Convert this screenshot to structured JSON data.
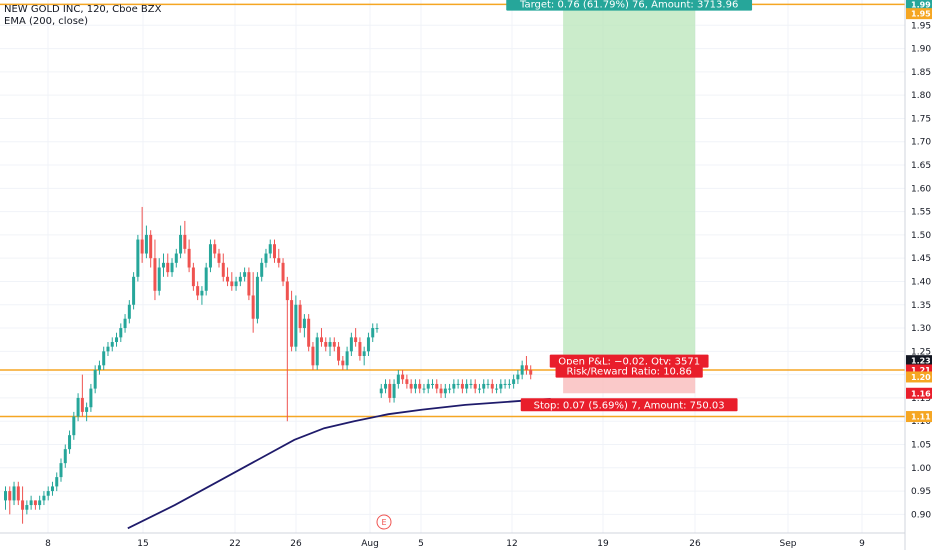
{
  "header": {
    "title": "NEW GOLD INC, 120, Cboe BZX",
    "indicator": "EMA (200, close)"
  },
  "colors": {
    "up": "#26a69a",
    "down": "#ef5350",
    "ema": "#1f1b6b",
    "hline": "#f5a623",
    "target_zone": "#b9e5b9",
    "stop_zone": "#f9c0c0",
    "label_green": "#26a69a",
    "label_red": "#e91e2b"
  },
  "chart_data": {
    "type": "candlestick",
    "symbol": "NEW GOLD INC",
    "interval": "120",
    "exchange": "Cboe BZX",
    "x_ticks": [
      "8",
      "15",
      "22",
      "26",
      "Aug",
      "5",
      "12",
      "19",
      "26",
      "Sep",
      "9"
    ],
    "y_ticks": [
      "1.95",
      "1.90",
      "1.85",
      "1.80",
      "1.75",
      "1.70",
      "1.65",
      "1.60",
      "1.55",
      "1.50",
      "1.45",
      "1.40",
      "1.35",
      "1.30",
      "1.25",
      "1.20",
      "1.15",
      "1.10",
      "1.05",
      "1.00",
      "0.95",
      "0.90"
    ],
    "ylim": [
      0.86,
      2.0
    ],
    "candles": [
      {
        "o": 0.93,
        "h": 0.96,
        "l": 0.91,
        "c": 0.95
      },
      {
        "o": 0.95,
        "h": 0.96,
        "l": 0.9,
        "c": 0.93
      },
      {
        "o": 0.93,
        "h": 0.97,
        "l": 0.92,
        "c": 0.96
      },
      {
        "o": 0.96,
        "h": 0.97,
        "l": 0.92,
        "c": 0.93
      },
      {
        "o": 0.93,
        "h": 0.96,
        "l": 0.88,
        "c": 0.91
      },
      {
        "o": 0.91,
        "h": 0.93,
        "l": 0.9,
        "c": 0.92
      },
      {
        "o": 0.92,
        "h": 0.94,
        "l": 0.91,
        "c": 0.93
      },
      {
        "o": 0.93,
        "h": 0.93,
        "l": 0.91,
        "c": 0.92
      },
      {
        "o": 0.92,
        "h": 0.94,
        "l": 0.91,
        "c": 0.93
      },
      {
        "o": 0.93,
        "h": 0.95,
        "l": 0.92,
        "c": 0.94
      },
      {
        "o": 0.94,
        "h": 0.96,
        "l": 0.93,
        "c": 0.95
      },
      {
        "o": 0.95,
        "h": 0.97,
        "l": 0.94,
        "c": 0.96
      },
      {
        "o": 0.96,
        "h": 0.99,
        "l": 0.95,
        "c": 0.98
      },
      {
        "o": 0.98,
        "h": 1.02,
        "l": 0.97,
        "c": 1.01
      },
      {
        "o": 1.01,
        "h": 1.05,
        "l": 1.0,
        "c": 1.04
      },
      {
        "o": 1.04,
        "h": 1.08,
        "l": 1.03,
        "c": 1.07
      },
      {
        "o": 1.07,
        "h": 1.12,
        "l": 1.06,
        "c": 1.11
      },
      {
        "o": 1.11,
        "h": 1.16,
        "l": 1.1,
        "c": 1.15
      },
      {
        "o": 1.15,
        "h": 1.2,
        "l": 1.11,
        "c": 1.12
      },
      {
        "o": 1.12,
        "h": 1.14,
        "l": 1.1,
        "c": 1.13
      },
      {
        "o": 1.13,
        "h": 1.18,
        "l": 1.12,
        "c": 1.17
      },
      {
        "o": 1.17,
        "h": 1.22,
        "l": 1.16,
        "c": 1.21
      },
      {
        "o": 1.21,
        "h": 1.23,
        "l": 1.2,
        "c": 1.22
      },
      {
        "o": 1.22,
        "h": 1.26,
        "l": 1.21,
        "c": 1.25
      },
      {
        "o": 1.25,
        "h": 1.27,
        "l": 1.24,
        "c": 1.26
      },
      {
        "o": 1.26,
        "h": 1.28,
        "l": 1.25,
        "c": 1.27
      },
      {
        "o": 1.27,
        "h": 1.29,
        "l": 1.26,
        "c": 1.28
      },
      {
        "o": 1.28,
        "h": 1.31,
        "l": 1.27,
        "c": 1.3
      },
      {
        "o": 1.3,
        "h": 1.33,
        "l": 1.29,
        "c": 1.32
      },
      {
        "o": 1.32,
        "h": 1.36,
        "l": 1.31,
        "c": 1.35
      },
      {
        "o": 1.35,
        "h": 1.42,
        "l": 1.34,
        "c": 1.41
      },
      {
        "o": 1.41,
        "h": 1.5,
        "l": 1.4,
        "c": 1.49
      },
      {
        "o": 1.49,
        "h": 1.56,
        "l": 1.44,
        "c": 1.46
      },
      {
        "o": 1.46,
        "h": 1.52,
        "l": 1.45,
        "c": 1.5
      },
      {
        "o": 1.5,
        "h": 1.51,
        "l": 1.43,
        "c": 1.45
      },
      {
        "o": 1.45,
        "h": 1.49,
        "l": 1.36,
        "c": 1.38
      },
      {
        "o": 1.38,
        "h": 1.45,
        "l": 1.37,
        "c": 1.43
      },
      {
        "o": 1.43,
        "h": 1.46,
        "l": 1.41,
        "c": 1.44
      },
      {
        "o": 1.44,
        "h": 1.46,
        "l": 1.41,
        "c": 1.42
      },
      {
        "o": 1.42,
        "h": 1.45,
        "l": 1.41,
        "c": 1.44
      },
      {
        "o": 1.44,
        "h": 1.47,
        "l": 1.43,
        "c": 1.46
      },
      {
        "o": 1.46,
        "h": 1.52,
        "l": 1.45,
        "c": 1.5
      },
      {
        "o": 1.5,
        "h": 1.53,
        "l": 1.46,
        "c": 1.47
      },
      {
        "o": 1.47,
        "h": 1.49,
        "l": 1.42,
        "c": 1.43
      },
      {
        "o": 1.43,
        "h": 1.44,
        "l": 1.38,
        "c": 1.39
      },
      {
        "o": 1.39,
        "h": 1.4,
        "l": 1.36,
        "c": 1.37
      },
      {
        "o": 1.37,
        "h": 1.39,
        "l": 1.35,
        "c": 1.38
      },
      {
        "o": 1.38,
        "h": 1.44,
        "l": 1.37,
        "c": 1.43
      },
      {
        "o": 1.43,
        "h": 1.49,
        "l": 1.42,
        "c": 1.48
      },
      {
        "o": 1.48,
        "h": 1.49,
        "l": 1.45,
        "c": 1.46
      },
      {
        "o": 1.46,
        "h": 1.47,
        "l": 1.43,
        "c": 1.44
      },
      {
        "o": 1.44,
        "h": 1.46,
        "l": 1.4,
        "c": 1.41
      },
      {
        "o": 1.41,
        "h": 1.43,
        "l": 1.39,
        "c": 1.4
      },
      {
        "o": 1.4,
        "h": 1.42,
        "l": 1.38,
        "c": 1.39
      },
      {
        "o": 1.39,
        "h": 1.41,
        "l": 1.38,
        "c": 1.4
      },
      {
        "o": 1.4,
        "h": 1.42,
        "l": 1.39,
        "c": 1.41
      },
      {
        "o": 1.41,
        "h": 1.43,
        "l": 1.4,
        "c": 1.42
      },
      {
        "o": 1.42,
        "h": 1.43,
        "l": 1.36,
        "c": 1.37
      },
      {
        "o": 1.37,
        "h": 1.42,
        "l": 1.29,
        "c": 1.32
      },
      {
        "o": 1.32,
        "h": 1.42,
        "l": 1.31,
        "c": 1.41
      },
      {
        "o": 1.41,
        "h": 1.45,
        "l": 1.4,
        "c": 1.44
      },
      {
        "o": 1.44,
        "h": 1.47,
        "l": 1.43,
        "c": 1.46
      },
      {
        "o": 1.46,
        "h": 1.49,
        "l": 1.45,
        "c": 1.48
      },
      {
        "o": 1.48,
        "h": 1.49,
        "l": 1.44,
        "c": 1.45
      },
      {
        "o": 1.45,
        "h": 1.47,
        "l": 1.43,
        "c": 1.44
      },
      {
        "o": 1.44,
        "h": 1.45,
        "l": 1.39,
        "c": 1.4
      },
      {
        "o": 1.4,
        "h": 1.41,
        "l": 1.1,
        "c": 1.36
      },
      {
        "o": 1.36,
        "h": 1.38,
        "l": 1.25,
        "c": 1.26
      },
      {
        "o": 1.26,
        "h": 1.37,
        "l": 1.25,
        "c": 1.35
      },
      {
        "o": 1.35,
        "h": 1.36,
        "l": 1.29,
        "c": 1.3
      },
      {
        "o": 1.3,
        "h": 1.33,
        "l": 1.28,
        "c": 1.32
      },
      {
        "o": 1.32,
        "h": 1.33,
        "l": 1.25,
        "c": 1.26
      },
      {
        "o": 1.26,
        "h": 1.27,
        "l": 1.21,
        "c": 1.22
      },
      {
        "o": 1.22,
        "h": 1.29,
        "l": 1.21,
        "c": 1.28
      },
      {
        "o": 1.28,
        "h": 1.3,
        "l": 1.26,
        "c": 1.27
      },
      {
        "o": 1.27,
        "h": 1.28,
        "l": 1.25,
        "c": 1.26
      },
      {
        "o": 1.26,
        "h": 1.28,
        "l": 1.24,
        "c": 1.27
      },
      {
        "o": 1.27,
        "h": 1.28,
        "l": 1.25,
        "c": 1.26
      },
      {
        "o": 1.26,
        "h": 1.27,
        "l": 1.22,
        "c": 1.23
      },
      {
        "o": 1.23,
        "h": 1.24,
        "l": 1.21,
        "c": 1.22
      },
      {
        "o": 1.22,
        "h": 1.26,
        "l": 1.21,
        "c": 1.25
      },
      {
        "o": 1.25,
        "h": 1.29,
        "l": 1.24,
        "c": 1.28
      },
      {
        "o": 1.28,
        "h": 1.3,
        "l": 1.26,
        "c": 1.27
      },
      {
        "o": 1.27,
        "h": 1.28,
        "l": 1.23,
        "c": 1.24
      },
      {
        "o": 1.24,
        "h": 1.26,
        "l": 1.22,
        "c": 1.25
      },
      {
        "o": 1.25,
        "h": 1.29,
        "l": 1.24,
        "c": 1.28
      },
      {
        "o": 1.28,
        "h": 1.31,
        "l": 1.27,
        "c": 1.3
      },
      {
        "o": 1.3,
        "h": 1.31,
        "l": 1.29,
        "c": 1.3
      },
      {
        "o": 1.16,
        "h": 1.18,
        "l": 1.15,
        "c": 1.17
      },
      {
        "o": 1.17,
        "h": 1.19,
        "l": 1.16,
        "c": 1.18
      },
      {
        "o": 1.18,
        "h": 1.19,
        "l": 1.14,
        "c": 1.15
      },
      {
        "o": 1.15,
        "h": 1.19,
        "l": 1.14,
        "c": 1.18
      },
      {
        "o": 1.18,
        "h": 1.21,
        "l": 1.17,
        "c": 1.2
      },
      {
        "o": 1.2,
        "h": 1.21,
        "l": 1.18,
        "c": 1.19
      },
      {
        "o": 1.19,
        "h": 1.2,
        "l": 1.17,
        "c": 1.18
      },
      {
        "o": 1.18,
        "h": 1.19,
        "l": 1.16,
        "c": 1.17
      },
      {
        "o": 1.17,
        "h": 1.19,
        "l": 1.16,
        "c": 1.18
      },
      {
        "o": 1.18,
        "h": 1.19,
        "l": 1.16,
        "c": 1.17
      },
      {
        "o": 1.17,
        "h": 1.18,
        "l": 1.16,
        "c": 1.17
      },
      {
        "o": 1.17,
        "h": 1.19,
        "l": 1.16,
        "c": 1.18
      },
      {
        "o": 1.18,
        "h": 1.19,
        "l": 1.17,
        "c": 1.18
      },
      {
        "o": 1.18,
        "h": 1.19,
        "l": 1.16,
        "c": 1.17
      },
      {
        "o": 1.17,
        "h": 1.18,
        "l": 1.15,
        "c": 1.16
      },
      {
        "o": 1.16,
        "h": 1.18,
        "l": 1.15,
        "c": 1.17
      },
      {
        "o": 1.17,
        "h": 1.18,
        "l": 1.16,
        "c": 1.17
      },
      {
        "o": 1.17,
        "h": 1.19,
        "l": 1.16,
        "c": 1.18
      },
      {
        "o": 1.18,
        "h": 1.19,
        "l": 1.17,
        "c": 1.18
      },
      {
        "o": 1.18,
        "h": 1.19,
        "l": 1.16,
        "c": 1.17
      },
      {
        "o": 1.17,
        "h": 1.19,
        "l": 1.16,
        "c": 1.18
      },
      {
        "o": 1.18,
        "h": 1.19,
        "l": 1.17,
        "c": 1.18
      },
      {
        "o": 1.18,
        "h": 1.19,
        "l": 1.16,
        "c": 1.17
      },
      {
        "o": 1.17,
        "h": 1.18,
        "l": 1.16,
        "c": 1.17
      },
      {
        "o": 1.17,
        "h": 1.19,
        "l": 1.16,
        "c": 1.18
      },
      {
        "o": 1.18,
        "h": 1.19,
        "l": 1.17,
        "c": 1.18
      },
      {
        "o": 1.18,
        "h": 1.19,
        "l": 1.16,
        "c": 1.17
      },
      {
        "o": 1.17,
        "h": 1.18,
        "l": 1.16,
        "c": 1.17
      },
      {
        "o": 1.17,
        "h": 1.19,
        "l": 1.16,
        "c": 1.18
      },
      {
        "o": 1.18,
        "h": 1.19,
        "l": 1.17,
        "c": 1.18
      },
      {
        "o": 1.18,
        "h": 1.19,
        "l": 1.17,
        "c": 1.18
      },
      {
        "o": 1.18,
        "h": 1.2,
        "l": 1.17,
        "c": 1.19
      },
      {
        "o": 1.19,
        "h": 1.21,
        "l": 1.18,
        "c": 1.2
      },
      {
        "o": 1.2,
        "h": 1.23,
        "l": 1.19,
        "c": 1.22
      },
      {
        "o": 1.22,
        "h": 1.24,
        "l": 1.2,
        "c": 1.21
      },
      {
        "o": 1.21,
        "h": 1.22,
        "l": 1.19,
        "c": 1.2
      }
    ],
    "ema_200": [
      {
        "bar": 29,
        "v": 0.87
      },
      {
        "bar": 40,
        "v": 0.92
      },
      {
        "bar": 50,
        "v": 0.97
      },
      {
        "bar": 60,
        "v": 1.02
      },
      {
        "bar": 68,
        "v": 1.06
      },
      {
        "bar": 75,
        "v": 1.085
      },
      {
        "bar": 82,
        "v": 1.1
      },
      {
        "bar": 90,
        "v": 1.115
      },
      {
        "bar": 98,
        "v": 1.125
      },
      {
        "bar": 108,
        "v": 1.135
      },
      {
        "bar": 120,
        "v": 1.143
      },
      {
        "bar": 128,
        "v": 1.148
      }
    ],
    "horizontal_lines": [
      1.995,
      1.21,
      1.11
    ],
    "position": {
      "entry": 1.23,
      "target": 1.99,
      "stop": 1.16,
      "start_bar": 130,
      "end_bar": 160
    },
    "price_labels": [
      {
        "text": "1.99",
        "price": 1.995,
        "kind": "green"
      },
      {
        "text": "1.95",
        "price": 1.975,
        "kind": "orange"
      },
      {
        "text": "1.23",
        "price": 1.23,
        "kind": "dark"
      },
      {
        "text": "1.21",
        "price": 1.21,
        "kind": "red"
      },
      {
        "text": "1.20",
        "price": 1.195,
        "kind": "orange"
      },
      {
        "text": "1.16",
        "price": 1.16,
        "kind": "red"
      },
      {
        "text": "1.11",
        "price": 1.11,
        "kind": "orange"
      }
    ],
    "annotations": {
      "target": "Target: 0.76 (61.79%) 76, Amount: 3713.96",
      "pnl": "Open P&L: −0.02, Qty: 3571",
      "rr": "Risk/Reward Ratio: 10.86",
      "stop": "Stop: 0.07 (5.69%) 7, Amount: 750.03",
      "event": "E"
    }
  }
}
